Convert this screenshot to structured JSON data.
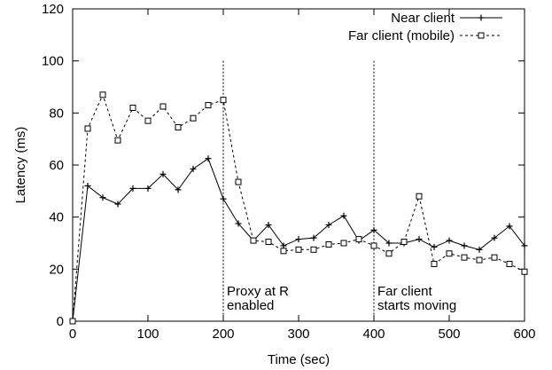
{
  "chart_data": {
    "type": "line",
    "xlabel": "Time (sec)",
    "ylabel": "Latency (ms)",
    "xlim": [
      0,
      600
    ],
    "ylim": [
      0,
      120
    ],
    "xticks": [
      0,
      100,
      200,
      300,
      400,
      500,
      600
    ],
    "yticks": [
      0,
      20,
      40,
      60,
      80,
      100,
      120
    ],
    "grid": false,
    "legend_position": "top-right",
    "series": [
      {
        "name": "Near client",
        "marker": "plus",
        "line": "solid",
        "color": "#000000",
        "x": [
          0,
          20,
          40,
          60,
          80,
          100,
          120,
          140,
          160,
          180,
          200,
          220,
          240,
          260,
          280,
          300,
          320,
          340,
          360,
          380,
          400,
          420,
          440,
          460,
          480,
          500,
          520,
          540,
          560,
          580,
          600
        ],
        "y": [
          0,
          52,
          47.5,
          45,
          51,
          51,
          56.5,
          50.5,
          58.5,
          62.5,
          47,
          37.5,
          31,
          37,
          29,
          31.5,
          32,
          37,
          40.5,
          31,
          35,
          30,
          30,
          31.5,
          28.5,
          31,
          29,
          27.5,
          32,
          36.5,
          29
        ]
      },
      {
        "name": "Far client (mobile)",
        "marker": "square",
        "line": "dashed",
        "color": "#000000",
        "x": [
          0,
          20,
          40,
          60,
          80,
          100,
          120,
          140,
          160,
          180,
          200,
          220,
          240,
          260,
          280,
          300,
          320,
          340,
          360,
          380,
          400,
          420,
          440,
          460,
          480,
          500,
          520,
          540,
          560,
          580,
          600
        ],
        "y": [
          0,
          74,
          87,
          69.5,
          82,
          77,
          82.5,
          74.5,
          78,
          83,
          85,
          53.5,
          31,
          30.5,
          27,
          27.5,
          27.5,
          29.5,
          30,
          31.5,
          29,
          26,
          30.5,
          48,
          22,
          26,
          24.5,
          23.5,
          24.5,
          22,
          19
        ]
      }
    ],
    "annotations": [
      {
        "x": 200,
        "lines": [
          "Proxy at R",
          "enabled"
        ]
      },
      {
        "x": 400,
        "lines": [
          "Far client",
          "starts moving"
        ]
      }
    ]
  }
}
